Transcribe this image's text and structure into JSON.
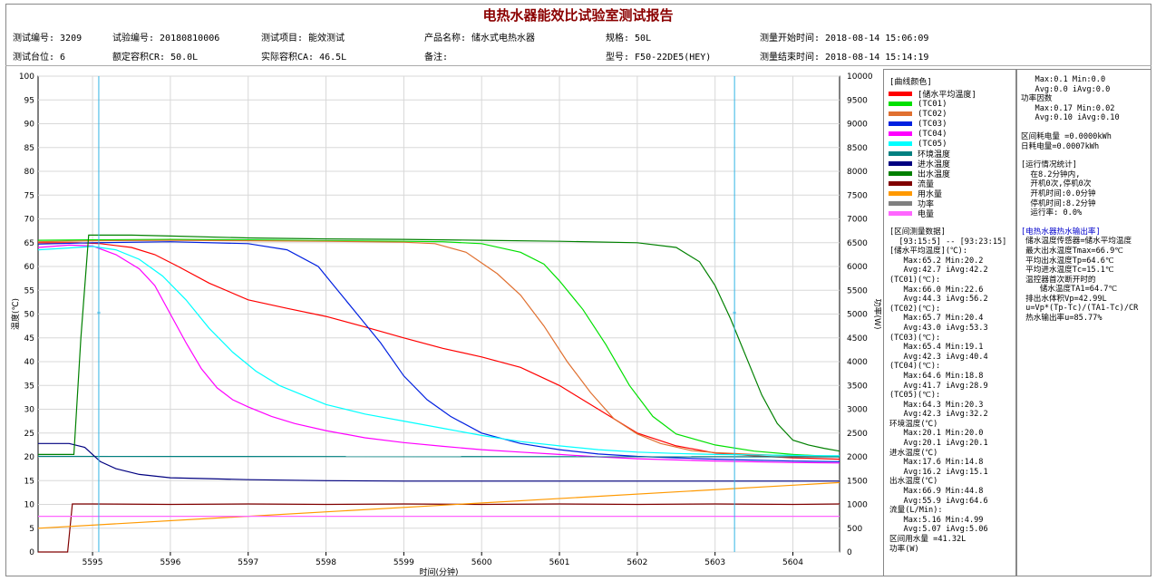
{
  "report": {
    "title": "电热水器能效比试验室测试报告",
    "info_row1": [
      "测试编号: 3209",
      "试验编号: 20180810006",
      "测试项目: 能效测试",
      "产品名称: 储水式电热水器",
      "规格: 50L",
      "测量开始时间: 2018-08-14 15:06:09"
    ],
    "info_row2": [
      "测试台位: 6",
      "额定容积CR: 50.0L",
      "实际容积CA: 46.5L",
      "备注:",
      "型号: F50-22DE5(HEY)",
      "测量结束时间: 2018-08-14 15:14:19"
    ]
  },
  "legend": {
    "header": "[曲线颜色]",
    "items": [
      {
        "label": "[储水平均温度]",
        "color": "#FF0000"
      },
      {
        "label": "(TC01)",
        "color": "#00E000"
      },
      {
        "label": "(TC02)",
        "color": "#E07030"
      },
      {
        "label": "(TC03)",
        "color": "#0020E0"
      },
      {
        "label": "(TC04)",
        "color": "#FF00FF"
      },
      {
        "label": "(TC05)",
        "color": "#00FFFF"
      },
      {
        "label": "环境温度",
        "color": "#008080"
      },
      {
        "label": "进水温度",
        "color": "#000080"
      },
      {
        "label": "出水温度",
        "color": "#008000"
      },
      {
        "label": "流量",
        "color": "#800000"
      },
      {
        "label": "用水量",
        "color": "#FF9900"
      },
      {
        "label": "功率",
        "color": "#808080"
      },
      {
        "label": "电量",
        "color": "#FF66FF"
      }
    ],
    "interval_header": "[区间测量数据]",
    "interval_range": "  [93:15:5] -- [93:23:15]",
    "stats": [
      "[储水平均温度](℃):",
      "   Max:65.2 Min:20.2",
      "   Avg:42.7 iAvg:42.2",
      "(TC01)(℃):",
      "   Max:66.0 Min:22.6",
      "   Avg:44.3 iAvg:56.2",
      "(TC02)(℃):",
      "   Max:65.7 Min:20.4",
      "   Avg:43.0 iAvg:53.3",
      "(TC03)(℃):",
      "   Max:65.4 Min:19.1",
      "   Avg:42.3 iAvg:40.4",
      "(TC04)(℃):",
      "   Max:64.6 Min:18.8",
      "   Avg:41.7 iAvg:28.9",
      "(TC05)(℃):",
      "   Max:64.3 Min:20.3",
      "   Avg:42.3 iAvg:32.2",
      "环境温度(℃)",
      "   Max:20.1 Min:20.0",
      "   Avg:20.1 iAvg:20.1",
      "进水温度(℃)",
      "   Max:17.6 Min:14.8",
      "   Avg:16.2 iAvg:15.1",
      "出水温度(℃)",
      "   Max:66.9 Min:44.8",
      "   Avg:55.9 iAvg:64.6",
      "流量(L/Min):",
      "   Max:5.16 Min:4.99",
      "   Avg:5.07 iAvg:5.06",
      "区间用水量 =41.32L",
      "功率(W)"
    ]
  },
  "summary": {
    "power_lines": [
      "   Max:0.1 Min:0.0",
      "   Avg:0.0 iAvg:0.0"
    ],
    "power_factor_title": "功率因数",
    "power_factor_lines": [
      "   Max:0.17 Min:0.02",
      "   Avg:0.10 iAvg:0.10"
    ],
    "energy_lines": [
      "区间耗电量 =0.0000kWh",
      "日耗电量=0.0007kWh"
    ],
    "run_title": "[运行情况统计]",
    "run_lines": [
      "  在8.2分钟内,",
      "  开机0次,停机0次",
      "  开机时间:0.0分钟",
      "  停机时间:8.2分钟",
      "  运行率: 0.0%"
    ],
    "output_title": "[电热水器热水输出率]",
    "output_lines": [
      " 储水温度传感器=储水平均温度",
      " 最大出水温度Tmax=66.9℃",
      " 平均出水温度Tp=64.6℃",
      " 平均进水温度Tc=15.1℃",
      " 温控器首次断开时的",
      "    储水温度TA1=64.7℃",
      " 排出水体积Vp=42.99L",
      " u=Vp*(Tp-Tc)/(TA1-Tc)/CR",
      " 热水输出率u=85.77%"
    ]
  },
  "chart_data": {
    "type": "line",
    "xlabel": "时间(分钟)",
    "ylabel": "温度(℃)",
    "y2label": "功率(W)",
    "xlim": [
      5594.3,
      5604.6
    ],
    "ylim": [
      0,
      100
    ],
    "y2lim": [
      0,
      10000
    ],
    "xticks": [
      5595,
      5596,
      5597,
      5598,
      5599,
      5600,
      5601,
      5602,
      5603,
      5604
    ],
    "yticks": [
      0,
      5,
      10,
      15,
      20,
      25,
      30,
      35,
      40,
      45,
      50,
      55,
      60,
      65,
      70,
      75,
      80,
      85,
      90,
      95,
      100
    ],
    "y2ticks": [
      0,
      500,
      1000,
      1500,
      2000,
      2500,
      3000,
      3500,
      4000,
      4500,
      5000,
      5500,
      6000,
      6500,
      7000,
      7500,
      8000,
      8500,
      9000,
      9500,
      10000
    ],
    "cursors": [
      {
        "x": 5595.08,
        "marker_y": 50
      },
      {
        "x": 5603.25,
        "marker_y": 50
      }
    ],
    "grid": true,
    "series": [
      {
        "name": "[储水平均温度]",
        "color": "#FF0000",
        "x": [
          5594.3,
          5594.8,
          5595.1,
          5595.5,
          5595.8,
          5596.1,
          5596.5,
          5597,
          5597.5,
          5598,
          5598.5,
          5599,
          5599.5,
          5600,
          5600.5,
          5601,
          5601.5,
          5602,
          5602.5,
          5603,
          5603.5,
          5604,
          5604.6
        ],
        "y": [
          65.0,
          65.0,
          64.8,
          64.0,
          62.5,
          60.0,
          56.5,
          53.0,
          51.2,
          49.5,
          47.3,
          45.0,
          42.8,
          41.0,
          38.8,
          35.0,
          30.0,
          25.0,
          22.3,
          20.8,
          20.2,
          19.8,
          19.5
        ]
      },
      {
        "name": "(TC01)",
        "color": "#00E000",
        "x": [
          5594.3,
          5595,
          5596,
          5597,
          5598,
          5599,
          5599.5,
          5600,
          5600.5,
          5600.8,
          5601,
          5601.3,
          5601.6,
          5601.9,
          5602.2,
          5602.5,
          5603,
          5603.5,
          5604,
          5604.6
        ],
        "y": [
          65.5,
          65.6,
          65.7,
          65.6,
          65.4,
          65.3,
          65.2,
          64.8,
          63.0,
          60.5,
          57.0,
          51.0,
          43.5,
          35.0,
          28.5,
          24.8,
          22.5,
          21.2,
          20.5,
          20.0
        ]
      },
      {
        "name": "(TC02)",
        "color": "#E07030",
        "x": [
          5594.3,
          5595,
          5596,
          5597,
          5598,
          5599,
          5599.4,
          5599.8,
          5600.2,
          5600.5,
          5600.8,
          5601.1,
          5601.4,
          5601.7,
          5602,
          5602.3,
          5602.7,
          5603,
          5603.5,
          5604,
          5604.6
        ],
        "y": [
          65.2,
          65.4,
          65.5,
          65.4,
          65.3,
          65.1,
          64.8,
          63.0,
          58.5,
          54.0,
          47.5,
          40.0,
          33.5,
          28.0,
          24.8,
          22.8,
          21.3,
          20.9,
          20.5,
          20.2,
          20.0
        ]
      },
      {
        "name": "(TC03)",
        "color": "#0020E0",
        "x": [
          5594.3,
          5595,
          5596,
          5597,
          5597.5,
          5597.9,
          5598.1,
          5598.4,
          5598.7,
          5599,
          5599.3,
          5599.6,
          5600,
          5600.5,
          5601,
          5601.5,
          5602,
          5602.5,
          5603,
          5604,
          5604.6
        ],
        "y": [
          64.7,
          65.0,
          65.2,
          64.8,
          63.5,
          60.0,
          56.0,
          50.0,
          44.0,
          37.0,
          32.0,
          28.5,
          25.0,
          22.8,
          21.5,
          20.6,
          20.1,
          19.8,
          19.5,
          19.1,
          19.0
        ]
      },
      {
        "name": "(TC04)",
        "color": "#FF00FF",
        "x": [
          5594.3,
          5594.7,
          5595,
          5595.3,
          5595.6,
          5595.8,
          5596,
          5596.2,
          5596.4,
          5596.6,
          5596.8,
          5597,
          5597.3,
          5597.6,
          5598,
          5598.5,
          5599,
          5599.5,
          5600,
          5600.5,
          5601,
          5601.5,
          5602,
          5603,
          5604,
          5604.6
        ],
        "y": [
          64.0,
          64.5,
          64.3,
          62.5,
          59.5,
          56.0,
          50.0,
          44.0,
          38.5,
          34.5,
          32.0,
          30.5,
          28.5,
          27.0,
          25.5,
          24.0,
          23.0,
          22.2,
          21.5,
          21.0,
          20.5,
          20.0,
          19.6,
          19.1,
          18.8,
          18.7
        ]
      },
      {
        "name": "(TC05)",
        "color": "#00FFFF",
        "x": [
          5594.3,
          5594.6,
          5595,
          5595.3,
          5595.6,
          5595.9,
          5596.2,
          5596.5,
          5596.8,
          5597.1,
          5597.4,
          5597.7,
          5598,
          5598.5,
          5599,
          5599.5,
          5600,
          5600.5,
          5601,
          5601.5,
          5602,
          5602.5,
          5603,
          5604,
          5604.6
        ],
        "y": [
          63.5,
          63.8,
          64.2,
          63.5,
          61.5,
          58.0,
          53.0,
          47.0,
          42.0,
          38.0,
          35.0,
          33.0,
          31.0,
          29.0,
          27.5,
          26.0,
          24.5,
          23.2,
          22.3,
          21.5,
          21.0,
          20.7,
          20.5,
          20.3,
          20.2
        ]
      },
      {
        "name": "环境温度",
        "color": "#008080",
        "x": [
          5594.3,
          5604.6
        ],
        "y": [
          20.1,
          20.0
        ]
      },
      {
        "name": "进水温度",
        "color": "#000080",
        "x": [
          5594.3,
          5594.7,
          5594.9,
          5595.1,
          5595.3,
          5595.6,
          5596,
          5596.5,
          5597,
          5598,
          5599,
          5600,
          5601,
          5602,
          5603,
          5604,
          5604.6
        ],
        "y": [
          22.8,
          22.8,
          22.0,
          19.0,
          17.5,
          16.3,
          15.6,
          15.4,
          15.2,
          15.0,
          14.9,
          14.9,
          14.9,
          14.9,
          14.9,
          14.9,
          14.9
        ]
      },
      {
        "name": "出水温度",
        "color": "#008000",
        "x": [
          5594.3,
          5594.76,
          5594.85,
          5594.95,
          5595.5,
          5596,
          5597,
          5598,
          5599,
          5600,
          5601,
          5602,
          5602.5,
          5602.8,
          5603,
          5603.2,
          5603.4,
          5603.6,
          5603.8,
          5604,
          5604.2,
          5604.4,
          5604.6
        ],
        "y": [
          20.5,
          20.5,
          45.0,
          66.6,
          66.6,
          66.4,
          66.0,
          65.8,
          65.7,
          65.5,
          65.3,
          65.0,
          64.0,
          61.0,
          56.0,
          49.0,
          41.0,
          33.0,
          27.0,
          23.5,
          22.5,
          21.8,
          21.2
        ]
      },
      {
        "name": "流量",
        "color": "#800000",
        "x": [
          5594.3,
          5594.68,
          5594.74,
          5595,
          5596,
          5597,
          5598,
          5599,
          5600,
          5601,
          5602,
          5603,
          5604,
          5604.6
        ],
        "y": [
          0,
          0,
          10.1,
          10.1,
          10.0,
          10.1,
          10.0,
          10.1,
          10.0,
          10.1,
          10.0,
          10.1,
          10.0,
          10.1
        ]
      },
      {
        "name": "用水量",
        "color": "#FF9900",
        "x": [
          5594.3,
          5604.6
        ],
        "y": [
          5.0,
          14.6
        ]
      },
      {
        "name": "电量",
        "color": "#FF66FF",
        "x": [
          5594.3,
          5604.6
        ],
        "y": [
          7.5,
          7.5
        ]
      }
    ]
  }
}
